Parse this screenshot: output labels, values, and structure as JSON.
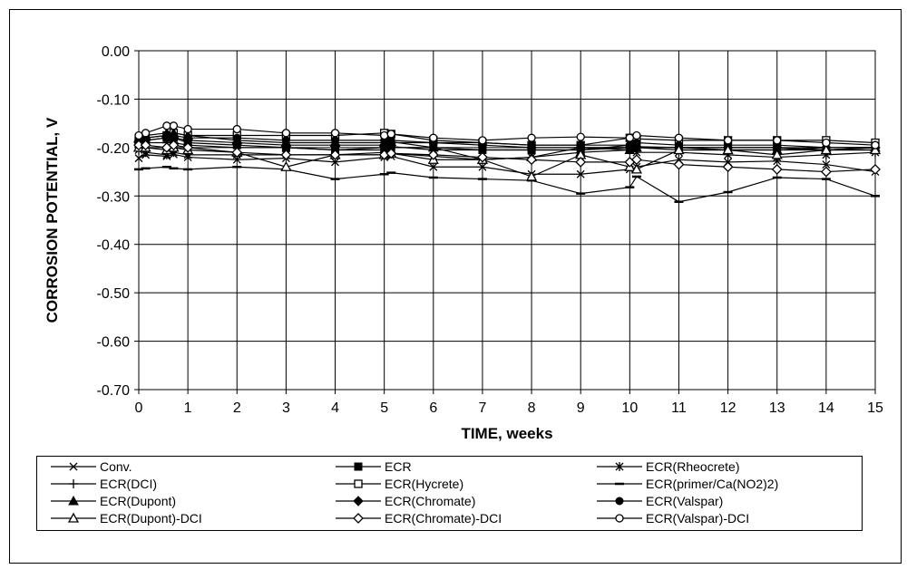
{
  "chart_data": {
    "type": "line",
    "title": "",
    "xlabel": "TIME, weeks",
    "ylabel": "CORROSION POTENTIAL, V",
    "xlim": [
      0,
      15
    ],
    "ylim": [
      -0.7,
      0.0
    ],
    "grid": true,
    "legend_position": "bottom",
    "x_ticks": [
      "0",
      "1",
      "2",
      "3",
      "4",
      "5",
      "6",
      "7",
      "8",
      "9",
      "10",
      "11",
      "12",
      "13",
      "14",
      "15"
    ],
    "y_ticks": [
      "0.00",
      "-0.10",
      "-0.20",
      "-0.30",
      "-0.40",
      "-0.50",
      "-0.60",
      "-0.70"
    ],
    "x": [
      0,
      0.14,
      0.57,
      0.71,
      1,
      2,
      3,
      4,
      5,
      5.14,
      6,
      7,
      8,
      9,
      10,
      10.14,
      11,
      12,
      13,
      14,
      15
    ],
    "series": [
      {
        "name": "Conv.",
        "marker": "x",
        "values": [
          -0.222,
          -0.215,
          -0.218,
          -0.214,
          -0.22,
          -0.225,
          -0.222,
          -0.23,
          -0.22,
          -0.218,
          -0.24,
          -0.24,
          -0.255,
          -0.255,
          -0.245,
          -0.24,
          -0.225,
          -0.23,
          -0.228,
          -0.235,
          -0.25
        ]
      },
      {
        "name": "ECR",
        "marker": "square-filled",
        "values": [
          -0.19,
          -0.185,
          -0.18,
          -0.18,
          -0.19,
          -0.195,
          -0.2,
          -0.205,
          -0.205,
          -0.2,
          -0.2,
          -0.205,
          -0.205,
          -0.205,
          -0.2,
          -0.2,
          -0.2,
          -0.205,
          -0.205,
          -0.205,
          -0.205
        ]
      },
      {
        "name": "ECR(Rheocrete)",
        "marker": "asterisk",
        "values": [
          -0.205,
          -0.21,
          -0.215,
          -0.21,
          -0.215,
          -0.215,
          -0.215,
          -0.215,
          -0.21,
          -0.212,
          -0.218,
          -0.225,
          -0.22,
          -0.2,
          -0.205,
          -0.21,
          -0.21,
          -0.215,
          -0.22,
          -0.215,
          -0.21
        ]
      },
      {
        "name": "ECR(DCI)",
        "marker": "plus",
        "values": [
          -0.195,
          -0.19,
          -0.19,
          -0.19,
          -0.195,
          -0.2,
          -0.2,
          -0.205,
          -0.2,
          -0.198,
          -0.205,
          -0.205,
          -0.205,
          -0.205,
          -0.195,
          -0.198,
          -0.2,
          -0.2,
          -0.2,
          -0.205,
          -0.2
        ]
      },
      {
        "name": "ECR(Hycrete)",
        "marker": "square-open",
        "values": [
          -0.185,
          -0.18,
          -0.175,
          -0.17,
          -0.175,
          -0.175,
          -0.175,
          -0.175,
          -0.17,
          -0.172,
          -0.185,
          -0.19,
          -0.195,
          -0.195,
          -0.18,
          -0.182,
          -0.185,
          -0.185,
          -0.185,
          -0.185,
          -0.19
        ]
      },
      {
        "name": "ECR(primer/Ca(NO2)2)",
        "marker": "dash",
        "values": [
          -0.245,
          -0.243,
          -0.24,
          -0.243,
          -0.245,
          -0.24,
          -0.245,
          -0.265,
          -0.255,
          -0.252,
          -0.262,
          -0.265,
          -0.268,
          -0.295,
          -0.282,
          -0.26,
          -0.312,
          -0.292,
          -0.262,
          -0.265,
          -0.3
        ]
      },
      {
        "name": "ECR(Dupont)",
        "marker": "triangle-filled",
        "values": [
          -0.18,
          -0.175,
          -0.17,
          -0.17,
          -0.175,
          -0.185,
          -0.19,
          -0.19,
          -0.19,
          -0.188,
          -0.2,
          -0.225,
          -0.22,
          -0.21,
          -0.205,
          -0.2,
          -0.205,
          -0.205,
          -0.205,
          -0.2,
          -0.2
        ]
      },
      {
        "name": "ECR(Chromate)",
        "marker": "diamond-filled",
        "values": [
          -0.19,
          -0.185,
          -0.18,
          -0.18,
          -0.185,
          -0.19,
          -0.195,
          -0.195,
          -0.195,
          -0.19,
          -0.19,
          -0.195,
          -0.2,
          -0.2,
          -0.2,
          -0.2,
          -0.2,
          -0.2,
          -0.2,
          -0.205,
          -0.2
        ]
      },
      {
        "name": "ECR(Valspar)",
        "marker": "circle-filled",
        "values": [
          -0.185,
          -0.18,
          -0.175,
          -0.175,
          -0.18,
          -0.18,
          -0.185,
          -0.185,
          -0.185,
          -0.185,
          -0.19,
          -0.19,
          -0.195,
          -0.195,
          -0.195,
          -0.19,
          -0.195,
          -0.195,
          -0.195,
          -0.2,
          -0.2
        ]
      },
      {
        "name": "ECR(Dupont)-DCI",
        "marker": "triangle-open",
        "values": [
          -0.2,
          -0.2,
          -0.205,
          -0.2,
          -0.205,
          -0.21,
          -0.24,
          -0.215,
          -0.215,
          -0.212,
          -0.225,
          -0.225,
          -0.26,
          -0.215,
          -0.24,
          -0.245,
          -0.205,
          -0.205,
          -0.215,
          -0.205,
          -0.205
        ]
      },
      {
        "name": "ECR(Chromate)-DCI",
        "marker": "diamond-open",
        "values": [
          -0.195,
          -0.195,
          -0.2,
          -0.195,
          -0.2,
          -0.21,
          -0.215,
          -0.215,
          -0.215,
          -0.212,
          -0.215,
          -0.22,
          -0.225,
          -0.23,
          -0.23,
          -0.225,
          -0.235,
          -0.24,
          -0.245,
          -0.25,
          -0.245
        ]
      },
      {
        "name": "ECR(Valspar)-DCI",
        "marker": "circle-open",
        "values": [
          -0.175,
          -0.17,
          -0.155,
          -0.155,
          -0.162,
          -0.162,
          -0.17,
          -0.17,
          -0.175,
          -0.172,
          -0.18,
          -0.185,
          -0.18,
          -0.178,
          -0.18,
          -0.175,
          -0.18,
          -0.185,
          -0.185,
          -0.19,
          -0.195
        ]
      }
    ]
  }
}
